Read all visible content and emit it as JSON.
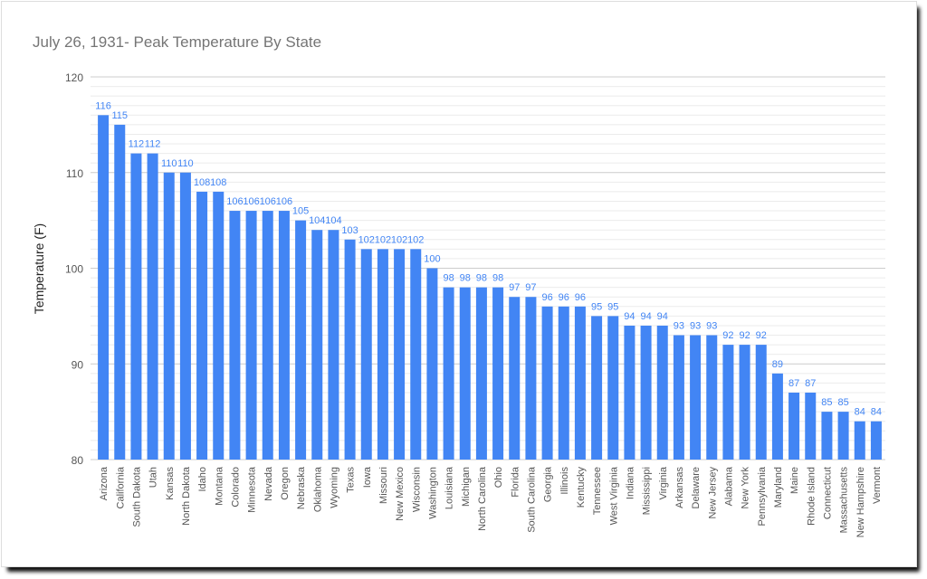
{
  "chart_data": {
    "type": "bar",
    "title": "July 26, 1931- Peak Temperature By State",
    "xlabel": "",
    "ylabel": "Temperature (F)",
    "ylim": [
      80,
      120
    ],
    "yticks": [
      80,
      90,
      100,
      110,
      120
    ],
    "grid": true,
    "bar_color": "#4285f4",
    "label_color": "#4285f4",
    "categories": [
      "Arizona",
      "California",
      "South Dakota",
      "Utah",
      "Kansas",
      "North Dakota",
      "Idaho",
      "Montana",
      "Colorado",
      "Minnesota",
      "Nevada",
      "Oregon",
      "Nebraska",
      "Oklahoma",
      "Wyoming",
      "Texas",
      "Iowa",
      "Missouri",
      "New Mexico",
      "Wisconsin",
      "Washington",
      "Louisiana",
      "Michigan",
      "North Carolina",
      "Ohio",
      "Florida",
      "South Carolina",
      "Georgia",
      "Illinois",
      "Kentucky",
      "Tennessee",
      "West Virginia",
      "Indiana",
      "Mississippi",
      "Virginia",
      "Arkansas",
      "Delaware",
      "New Jersey",
      "Alabama",
      "New York",
      "Pennsylvania",
      "Maryland",
      "Maine",
      "Rhode Island",
      "Connecticut",
      "Massachusetts",
      "New Hampshire",
      "Vermont"
    ],
    "values": [
      116,
      115,
      112,
      112,
      110,
      110,
      108,
      108,
      106,
      106,
      106,
      106,
      105,
      104,
      104,
      103,
      102,
      102,
      102,
      102,
      100,
      98,
      98,
      98,
      98,
      97,
      97,
      96,
      96,
      96,
      95,
      95,
      94,
      94,
      94,
      93,
      93,
      93,
      92,
      92,
      92,
      89,
      87,
      87,
      85,
      85,
      84,
      84
    ]
  }
}
